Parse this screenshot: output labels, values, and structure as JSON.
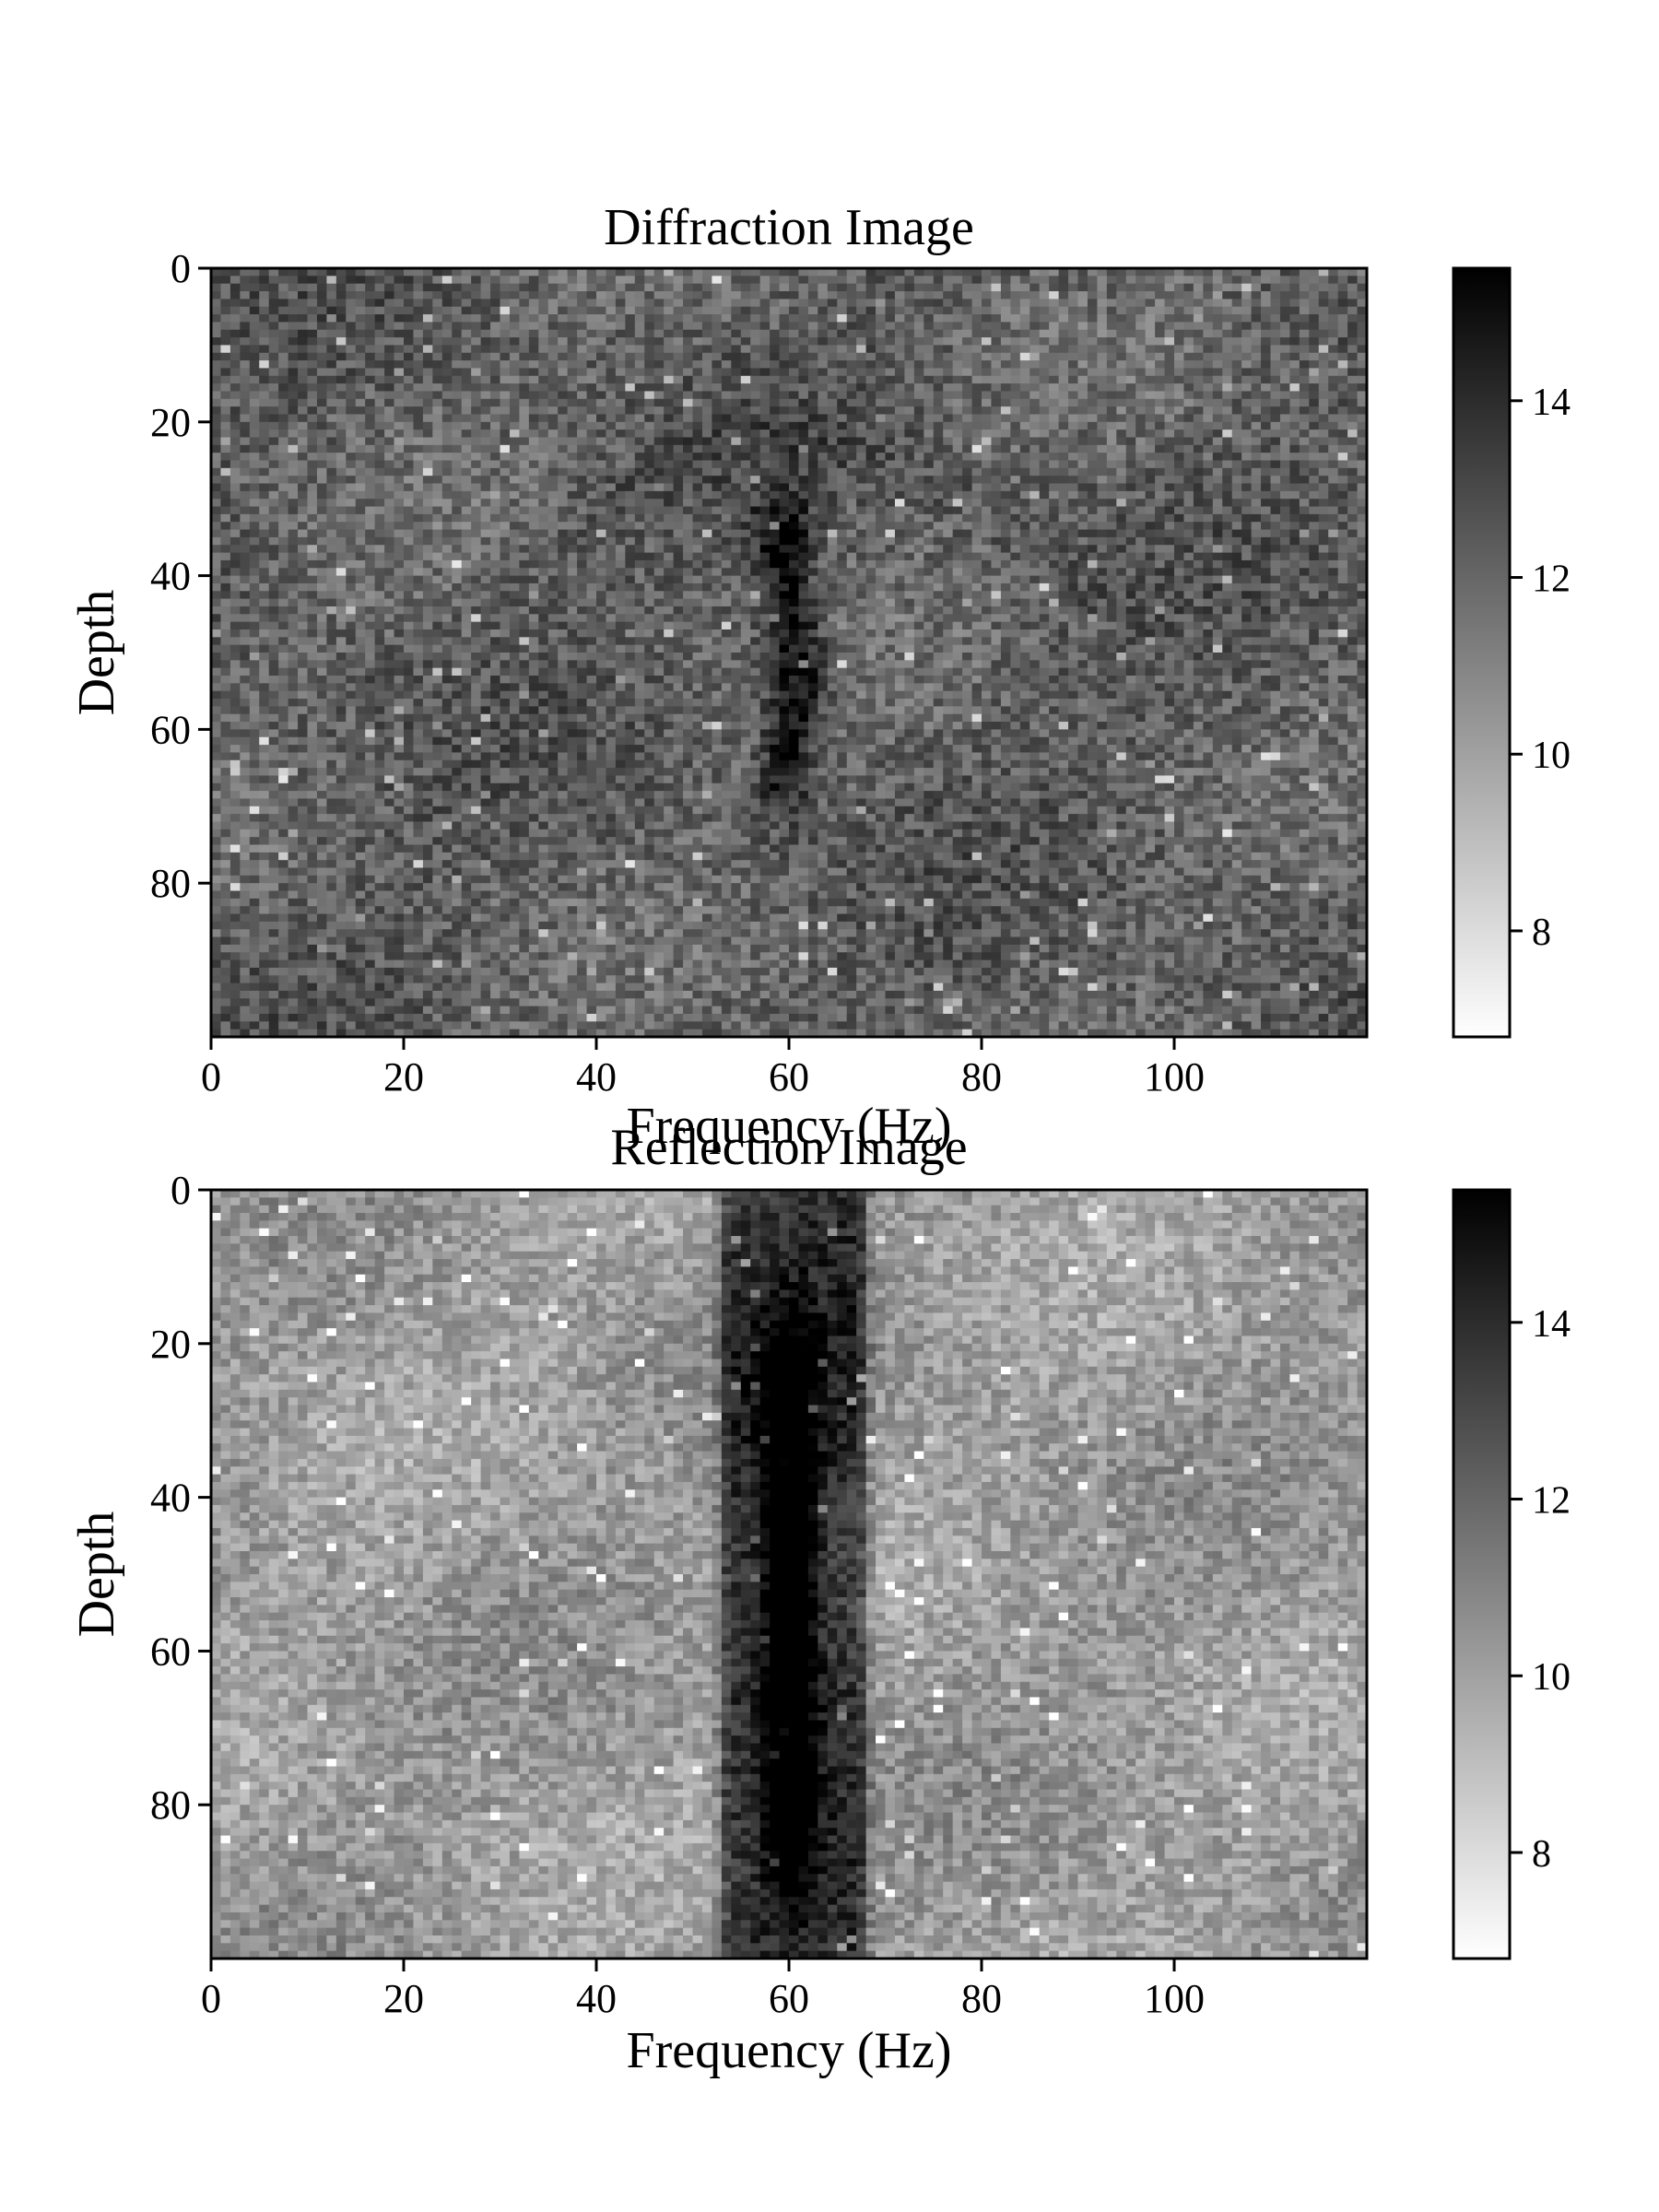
{
  "chart_data": [
    {
      "type": "heatmap",
      "title": "Diffraction Image",
      "xlabel": "Frequency (Hz)",
      "ylabel": "Depth",
      "x_range": [
        0,
        120
      ],
      "y_range": [
        0,
        100
      ],
      "y_inverted": true,
      "xticks": [
        0,
        20,
        40,
        60,
        80,
        100
      ],
      "yticks": [
        0,
        20,
        40,
        60,
        80
      ],
      "colorbar": {
        "min": 6.8,
        "max": 15.5,
        "ticks": [
          8,
          10,
          12,
          14
        ],
        "colormap": "gray_r"
      },
      "grid": false,
      "background_level": 12.2,
      "noise_amplitude": 1.3,
      "features": [
        {
          "kind": "vertical-streak",
          "x_center": 60,
          "x_halfwidth": 2.5,
          "depth_start": 30,
          "depth_end": 70,
          "peak": 15.2
        },
        {
          "kind": "diffraction-hyperbola",
          "x_center": 60,
          "apex_depth": 50,
          "peak": 13.2
        }
      ]
    },
    {
      "type": "heatmap",
      "title": "Reflection Image",
      "xlabel": "Frequency (Hz)",
      "ylabel": "Depth",
      "x_range": [
        0,
        120
      ],
      "y_range": [
        0,
        100
      ],
      "y_inverted": true,
      "xticks": [
        0,
        20,
        40,
        60,
        80,
        100
      ],
      "yticks": [
        0,
        20,
        40,
        60,
        80
      ],
      "colorbar": {
        "min": 6.8,
        "max": 15.5,
        "ticks": [
          8,
          10,
          12,
          14
        ],
        "colormap": "gray_r"
      },
      "grid": false,
      "background_level": 10.2,
      "noise_amplitude": 1.1,
      "features": [
        {
          "kind": "vertical-band",
          "x_start": 54,
          "x_end": 67,
          "depth_start": 0,
          "depth_end": 100,
          "peak": 14.6
        },
        {
          "kind": "dark-core",
          "x_center": 60,
          "x_halfwidth": 2.5,
          "depth_start": 20,
          "depth_end": 90,
          "peak": 15.3
        }
      ]
    }
  ]
}
